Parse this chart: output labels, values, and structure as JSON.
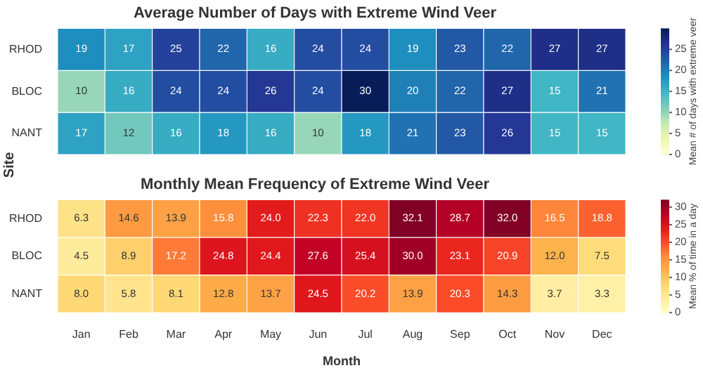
{
  "chart_data": [
    {
      "type": "heatmap",
      "title": "Average Number of Days with Extreme Wind Veer",
      "ylabel": "Site",
      "clabel": "Mean # of days with extreme veer",
      "categories": [
        null,
        null,
        null,
        null,
        null,
        null,
        null,
        null,
        null,
        null,
        null,
        null
      ],
      "y_categories": [
        "RHOD",
        "BLOC",
        "NANT"
      ],
      "cells": [
        [
          19,
          17,
          25,
          22,
          16,
          24,
          24,
          19,
          23,
          22,
          27,
          27
        ],
        [
          10,
          16,
          24,
          24,
          26,
          24,
          30,
          20,
          22,
          27,
          15,
          21
        ],
        [
          17,
          12,
          16,
          18,
          16,
          10,
          18,
          21,
          23,
          26,
          15,
          15
        ]
      ],
      "clim": [
        0,
        30
      ],
      "cticks": [
        0,
        5,
        10,
        15,
        20,
        25
      ],
      "tick_labels": "y",
      "data_labels": true
    },
    {
      "type": "heatmap",
      "title": "Monthly Mean Frequency of Extreme Wind Veer",
      "xlabel": "Month",
      "clabel": "Mean % of time in a day",
      "categories": [
        "Jan",
        "Feb",
        "Mar",
        "Apr",
        "May",
        "Jun",
        "Jul",
        "Aug",
        "Sep",
        "Oct",
        "Nov",
        "Dec"
      ],
      "y_categories": [
        "RHOD",
        "BLOC",
        "NANT"
      ],
      "cells": [
        [
          6.3,
          14.6,
          13.9,
          15.8,
          24.0,
          22.3,
          22.0,
          32.1,
          28.7,
          32.0,
          16.5,
          18.8
        ],
        [
          4.5,
          8.9,
          17.2,
          24.8,
          24.4,
          27.6,
          25.4,
          30.0,
          23.1,
          20.9,
          12.0,
          7.5
        ],
        [
          8.0,
          5.8,
          8.1,
          12.8,
          13.7,
          24.5,
          20.2,
          13.9,
          20.3,
          14.3,
          3.7,
          3.3
        ]
      ],
      "cell_labels": [
        [
          "6.3",
          "14.6",
          "13.9",
          "15.8",
          "24.0",
          "22.3",
          "22.0",
          "32.1",
          "28.7",
          "32.0",
          "16.5",
          "18.8"
        ],
        [
          "4.5",
          "8.9",
          "17.2",
          "24.8",
          "24.4",
          "27.6",
          "25.4",
          "30.0",
          "23.1",
          "20.9",
          "12.0",
          "7.5"
        ],
        [
          "8.0",
          "5.8",
          "8.1",
          "12.8",
          "13.7",
          "24.5",
          "20.2",
          "13.9",
          "20.3",
          "14.3",
          "3.7",
          "3.3"
        ]
      ],
      "clim": [
        0,
        32.1
      ],
      "cticks": [
        0,
        5,
        10,
        15,
        20,
        25,
        30
      ],
      "data_labels": true
    }
  ]
}
